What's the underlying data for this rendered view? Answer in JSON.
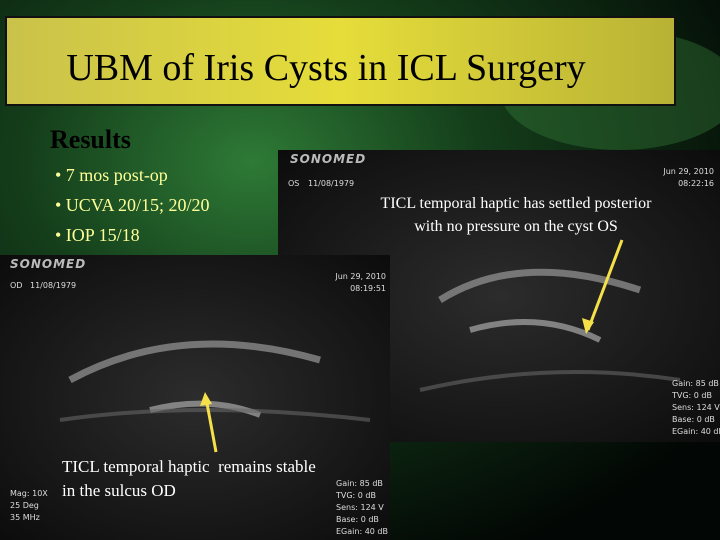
{
  "title": "UBM of Iris Cysts in ICL Surgery",
  "results": {
    "heading": "Results",
    "bullets": [
      "• 7 mos post-op",
      "• UCVA 20/15; 20/20",
      "• IOP 15/18"
    ]
  },
  "images": [
    {
      "eye": "OS",
      "brand": "SONOMED",
      "dob": "11/08/1979",
      "date": "Jun 29, 2010",
      "time": "08:22:16",
      "settings": [
        "Gain: 85 dB",
        "TVG: 0 dB",
        "Sens: 124 V",
        "Base: 0 dB",
        "EGain: 40 dB"
      ],
      "caption": [
        "TICL temporal haptic has settled posterior",
        "with no pressure on the cyst OS"
      ]
    },
    {
      "eye": "OD",
      "brand": "SONOMED",
      "dob": "11/08/1979",
      "date": "Jun 29, 2010",
      "time": "08:19:51",
      "probe": [
        "Mag: 10X",
        "25 Deg",
        "35 MHz"
      ],
      "settings": [
        "Gain: 85 dB",
        "TVG: 0 dB",
        "Sens: 124 V",
        "Base: 0 dB",
        "EGain: 40 dB"
      ],
      "caption": [
        "TICL temporal haptic  remains stable",
        "in the sulcus OD"
      ]
    }
  ]
}
